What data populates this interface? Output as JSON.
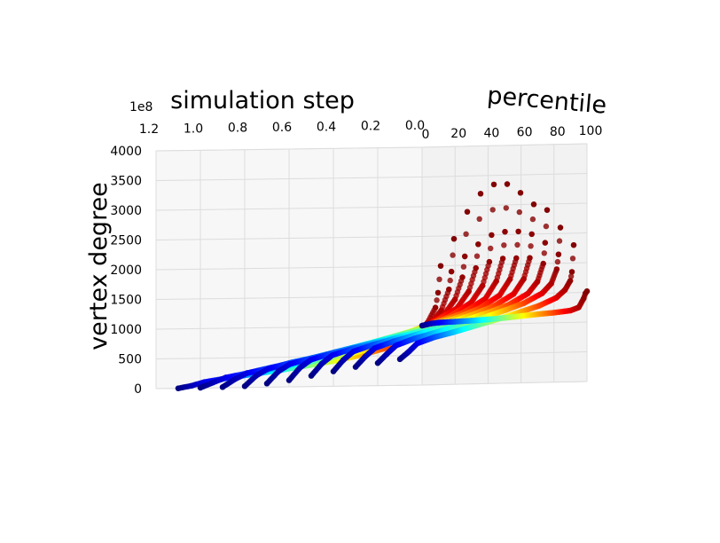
{
  "chart_data": {
    "type": "scatter",
    "projection": "3d",
    "xlabel": "percentile",
    "ylabel": "simulation step",
    "zlabel": "vertex degree",
    "offset_text": "1e8",
    "x_ticks": [
      "0",
      "20",
      "40",
      "60",
      "80",
      "100"
    ],
    "y_ticks": [
      "1.2",
      "1.0",
      "0.8",
      "0.6",
      "0.4",
      "0.2",
      "0.0"
    ],
    "z_ticks": [
      "0",
      "500",
      "1000",
      "1500",
      "2000",
      "2500",
      "3000",
      "3500",
      "4000"
    ],
    "xlim": [
      0,
      100
    ],
    "ylim": [
      0.0,
      1.2
    ],
    "zlim": [
      0,
      4000
    ],
    "grid": true,
    "colormap": "jet",
    "color_encodes": "percentile",
    "series": [
      {
        "step": 0.0,
        "percentiles": [
          0,
          5,
          10,
          20,
          30,
          40,
          50,
          60,
          70,
          80,
          90,
          95,
          98,
          99,
          100
        ],
        "degrees": [
          1000,
          1030,
          1045,
          1055,
          1065,
          1080,
          1100,
          1125,
          1150,
          1170,
          1200,
          1250,
          1400,
          1480,
          1520
        ]
      },
      {
        "step": 0.1,
        "percentiles": [
          0,
          5,
          10,
          20,
          30,
          40,
          50,
          60,
          70,
          80,
          90,
          95,
          98,
          99,
          100
        ],
        "degrees": [
          440,
          560,
          700,
          800,
          870,
          950,
          1030,
          1110,
          1200,
          1290,
          1420,
          1550,
          1700,
          1850,
          2300
        ]
      },
      {
        "step": 0.2,
        "percentiles": [
          0,
          5,
          10,
          20,
          30,
          40,
          50,
          60,
          70,
          80,
          90,
          95,
          98,
          99,
          100
        ],
        "degrees": [
          380,
          530,
          670,
          780,
          860,
          950,
          1040,
          1130,
          1230,
          1340,
          1500,
          1660,
          1900,
          2150,
          2600
        ]
      },
      {
        "step": 0.3,
        "percentiles": [
          0,
          5,
          10,
          20,
          30,
          40,
          50,
          60,
          70,
          80,
          90,
          95,
          98,
          99,
          100
        ],
        "degrees": [
          320,
          490,
          630,
          740,
          830,
          920,
          1010,
          1100,
          1200,
          1320,
          1500,
          1700,
          2000,
          2350,
          2900
        ]
      },
      {
        "step": 0.4,
        "percentiles": [
          0,
          5,
          10,
          20,
          30,
          40,
          50,
          60,
          70,
          80,
          90,
          95,
          98,
          99,
          100
        ],
        "degrees": [
          250,
          440,
          580,
          690,
          780,
          870,
          960,
          1060,
          1170,
          1300,
          1500,
          1750,
          2100,
          2500,
          3000
        ]
      },
      {
        "step": 0.5,
        "percentiles": [
          0,
          5,
          10,
          20,
          30,
          40,
          50,
          60,
          70,
          80,
          90,
          95,
          98,
          99,
          100
        ],
        "degrees": [
          180,
          380,
          520,
          630,
          720,
          810,
          910,
          1010,
          1120,
          1260,
          1480,
          1750,
          2100,
          2550,
          3200
        ]
      },
      {
        "step": 0.6,
        "percentiles": [
          0,
          5,
          10,
          20,
          30,
          40,
          50,
          60,
          70,
          80,
          90,
          95,
          98,
          99,
          100
        ],
        "degrees": [
          110,
          320,
          450,
          560,
          650,
          740,
          840,
          940,
          1060,
          1200,
          1430,
          1720,
          2100,
          2550,
          3350
        ]
      },
      {
        "step": 0.7,
        "percentiles": [
          0,
          5,
          10,
          20,
          30,
          40,
          50,
          60,
          70,
          80,
          90,
          95,
          98,
          99,
          100
        ],
        "degrees": [
          60,
          260,
          380,
          480,
          570,
          660,
          760,
          860,
          980,
          1130,
          1370,
          1650,
          2050,
          2500,
          3350
        ]
      },
      {
        "step": 0.8,
        "percentiles": [
          0,
          5,
          10,
          20,
          30,
          40,
          50,
          60,
          70,
          80,
          90,
          95,
          98,
          99,
          100
        ],
        "degrees": [
          20,
          200,
          310,
          410,
          490,
          580,
          670,
          770,
          890,
          1040,
          1280,
          1560,
          1950,
          2350,
          3200
        ]
      },
      {
        "step": 0.9,
        "percentiles": [
          0,
          5,
          10,
          20,
          30,
          40,
          50,
          60,
          70,
          80,
          90,
          95,
          98,
          99,
          100
        ],
        "degrees": [
          10,
          140,
          240,
          330,
          410,
          490,
          580,
          670,
          780,
          920,
          1150,
          1430,
          1800,
          2150,
          2900
        ]
      },
      {
        "step": 1.0,
        "percentiles": [
          0,
          5,
          10,
          20,
          30,
          40,
          50,
          60,
          70,
          80,
          90,
          95,
          98,
          99,
          100
        ],
        "degrees": [
          5,
          90,
          170,
          250,
          320,
          390,
          470,
          550,
          650,
          780,
          990,
          1250,
          1600,
          1900,
          2450
        ]
      },
      {
        "step": 1.1,
        "percentiles": [
          0,
          5,
          10,
          20,
          30,
          40,
          50,
          60,
          70,
          80,
          90,
          95,
          98,
          99,
          100
        ],
        "degrees": [
          0,
          40,
          100,
          170,
          230,
          290,
          360,
          430,
          520,
          640,
          820,
          1050,
          1300,
          1550,
          2000
        ]
      }
    ]
  }
}
